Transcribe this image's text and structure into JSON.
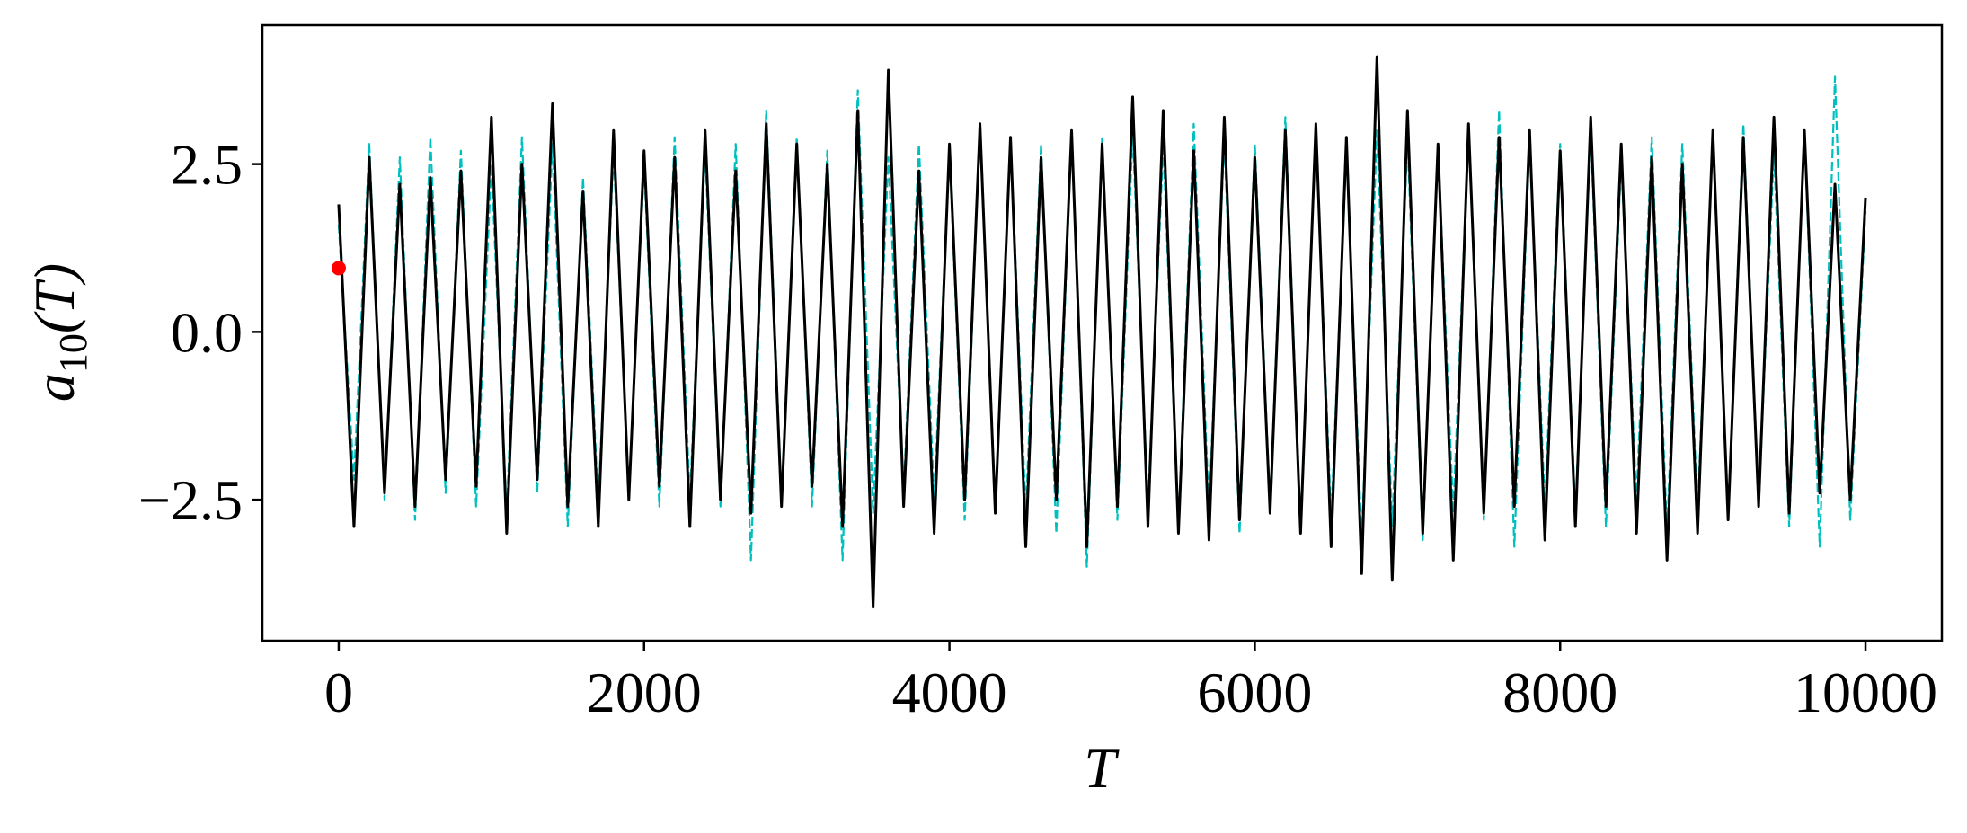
{
  "chart_data": {
    "type": "line",
    "xlabel": "T",
    "ylabel": {
      "base": "a",
      "sub": "10",
      "rest": "(T)"
    },
    "xlim": [
      -500,
      10500
    ],
    "ylim": [
      -4.6,
      4.57
    ],
    "xticks": [
      0,
      2000,
      4000,
      6000,
      8000,
      10000
    ],
    "yticks": [
      {
        "value": -2.5,
        "label": "−2.5"
      },
      {
        "value": 0,
        "label": "0.0"
      },
      {
        "value": 2.5,
        "label": "2.5"
      }
    ],
    "x": [
      0,
      100,
      200,
      300,
      400,
      500,
      600,
      700,
      800,
      900,
      1000,
      1100,
      1200,
      1300,
      1400,
      1500,
      1600,
      1700,
      1800,
      1900,
      2000,
      2100,
      2200,
      2300,
      2400,
      2500,
      2600,
      2700,
      2800,
      2900,
      3000,
      3100,
      3200,
      3300,
      3400,
      3500,
      3600,
      3700,
      3800,
      3900,
      4000,
      4100,
      4200,
      4300,
      4400,
      4500,
      4600,
      4700,
      4800,
      4900,
      5000,
      5100,
      5200,
      5300,
      5400,
      5500,
      5600,
      5700,
      5800,
      5900,
      6000,
      6100,
      6200,
      6300,
      6400,
      6500,
      6600,
      6700,
      6800,
      6900,
      7000,
      7100,
      7200,
      7300,
      7400,
      7500,
      7600,
      7700,
      7800,
      7900,
      8000,
      8100,
      8200,
      8300,
      8400,
      8500,
      8600,
      8700,
      8800,
      8900,
      9000,
      9100,
      9200,
      9300,
      9400,
      9500,
      9600,
      9700,
      9800,
      9900,
      10000
    ],
    "series": [
      {
        "color": "#00bfbf",
        "dash": true,
        "values": [
          1.6,
          -2.2,
          2.8,
          -2.5,
          2.6,
          -2.8,
          2.9,
          -2.4,
          2.7,
          -2.6,
          2.5,
          -2.7,
          2.9,
          -2.4,
          2.8,
          -2.9,
          2.3,
          -2.6,
          2.7,
          -2.4,
          2.5,
          -2.6,
          2.9,
          -2.5,
          2.7,
          -2.6,
          2.8,
          -3.4,
          3.3,
          -2.5,
          2.9,
          -2.6,
          2.7,
          -3.4,
          3.6,
          -2.7,
          2.6,
          -2.4,
          2.8,
          -2.5,
          2.7,
          -2.8,
          3.1,
          -2.6,
          2.9,
          -2.7,
          2.8,
          -3.0,
          3.0,
          -3.5,
          2.9,
          -2.8,
          3.0,
          -2.6,
          2.8,
          -2.9,
          3.1,
          -2.7,
          2.9,
          -3.0,
          2.8,
          -2.6,
          3.2,
          -2.9,
          3.0,
          -2.8,
          2.7,
          -3.1,
          3.0,
          -2.9,
          2.9,
          -3.1,
          2.8,
          -2.7,
          3.0,
          -2.8,
          3.3,
          -3.2,
          2.9,
          -2.6,
          2.8,
          -2.7,
          3.0,
          -2.9,
          2.6,
          -2.5,
          2.9,
          -3.0,
          2.8,
          -2.7,
          2.9,
          -2.8,
          3.1,
          -2.6,
          2.7,
          -2.9,
          3.0,
          -3.2,
          3.8,
          -2.8,
          1.8
        ]
      },
      {
        "color": "#000000",
        "dash": false,
        "values": [
          1.9,
          -2.9,
          2.6,
          -2.4,
          2.2,
          -2.6,
          2.3,
          -2.2,
          2.4,
          -2.3,
          3.2,
          -3.0,
          2.5,
          -2.2,
          3.4,
          -2.6,
          2.1,
          -2.9,
          3.0,
          -2.5,
          2.7,
          -2.3,
          2.6,
          -2.9,
          3.0,
          -2.5,
          2.4,
          -2.7,
          3.1,
          -2.6,
          2.8,
          -2.3,
          2.5,
          -2.9,
          3.3,
          -4.1,
          3.9,
          -2.6,
          2.4,
          -3.0,
          2.8,
          -2.5,
          3.1,
          -2.7,
          2.9,
          -3.2,
          2.6,
          -2.5,
          3.0,
          -3.2,
          2.8,
          -2.6,
          3.5,
          -2.9,
          3.3,
          -3.0,
          2.7,
          -3.1,
          3.2,
          -2.8,
          2.6,
          -2.7,
          3.0,
          -3.0,
          3.1,
          -3.2,
          2.9,
          -3.6,
          4.1,
          -3.7,
          3.3,
          -3.0,
          2.8,
          -3.4,
          3.1,
          -2.7,
          2.9,
          -2.6,
          3.0,
          -3.1,
          2.7,
          -2.9,
          3.2,
          -2.6,
          2.8,
          -3.0,
          2.6,
          -3.4,
          2.5,
          -3.0,
          3.0,
          -2.8,
          2.9,
          -2.6,
          3.2,
          -2.7,
          3.0,
          -2.4,
          2.2,
          -2.5,
          2.0
        ]
      }
    ],
    "marker": {
      "x": 0,
      "y": 0.95,
      "color": "#ff0000"
    }
  }
}
